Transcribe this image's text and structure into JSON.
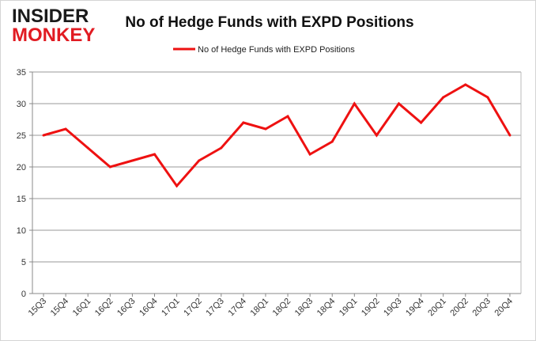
{
  "logo": {
    "line1": "INSIDER",
    "line2": "MONKEY"
  },
  "chart_data": {
    "type": "line",
    "title": "No of Hedge Funds with EXPD Positions",
    "categories": [
      "15Q3",
      "15Q4",
      "16Q1",
      "16Q2",
      "16Q3",
      "16Q4",
      "17Q1",
      "17Q2",
      "17Q3",
      "17Q4",
      "18Q1",
      "18Q2",
      "18Q3",
      "18Q4",
      "19Q1",
      "19Q2",
      "19Q3",
      "19Q4",
      "20Q1",
      "20Q2",
      "20Q3",
      "20Q4"
    ],
    "series": [
      {
        "name": "No of Hedge Funds with EXPD Positions",
        "color": "#ee1111",
        "values": [
          25,
          26,
          23,
          20,
          21,
          22,
          17,
          21,
          23,
          27,
          26,
          28,
          22,
          24,
          30,
          25,
          30,
          27,
          31,
          33,
          31,
          25
        ]
      }
    ],
    "ylim": [
      0,
      35
    ],
    "yticks": [
      0,
      5,
      10,
      15,
      20,
      25,
      30,
      35
    ],
    "grid": true,
    "legend_position": "top-center",
    "xlabel": "",
    "ylabel": ""
  }
}
